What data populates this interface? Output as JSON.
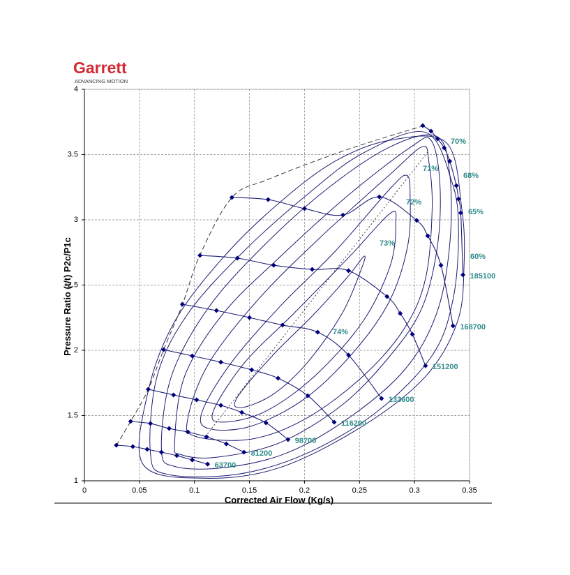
{
  "header": {
    "logo": "Garrett",
    "tagline": "ADVANCING MOTION"
  },
  "chart_data": {
    "type": "compressor_map",
    "x_label": "Corrected Air Flow (Kg/s)",
    "y_label": "Pressure Ratio (t/t) P2c/P1c",
    "xlim": [
      0,
      0.35
    ],
    "ylim": [
      1,
      4
    ],
    "xticks": [
      0,
      0.05,
      0.1,
      0.15,
      0.2,
      0.25,
      0.3,
      0.35
    ],
    "yticks": [
      1,
      1.5,
      2,
      2.5,
      3,
      3.5,
      4
    ],
    "grid": true,
    "line_color": "#1c1c72",
    "marker_color": "#000080",
    "label_color": "#2e8b8b",
    "series": [
      {
        "name": "63700",
        "x": [
          0.029,
          0.044,
          0.057,
          0.07,
          0.084,
          0.098,
          0.112
        ],
        "y": [
          1.273,
          1.262,
          1.241,
          1.219,
          1.193,
          1.16,
          1.128
        ]
      },
      {
        "name": "81200",
        "x": [
          0.042,
          0.06,
          0.077,
          0.094,
          0.111,
          0.129,
          0.145
        ],
        "y": [
          1.455,
          1.439,
          1.401,
          1.374,
          1.337,
          1.283,
          1.219
        ]
      },
      {
        "name": "98700",
        "x": [
          0.058,
          0.081,
          0.102,
          0.124,
          0.143,
          0.165,
          0.185
        ],
        "y": [
          1.701,
          1.658,
          1.62,
          1.578,
          1.524,
          1.444,
          1.316
        ]
      },
      {
        "name": "116200",
        "x": [
          0.072,
          0.098,
          0.124,
          0.152,
          0.176,
          0.203,
          0.227
        ],
        "y": [
          2.005,
          1.957,
          1.909,
          1.85,
          1.786,
          1.652,
          1.449
        ]
      },
      {
        "name": "133600",
        "x": [
          0.089,
          0.12,
          0.15,
          0.18,
          0.212,
          0.24,
          0.27
        ],
        "y": [
          2.353,
          2.305,
          2.251,
          2.193,
          2.139,
          1.963,
          1.631
        ]
      },
      {
        "name": "151200",
        "x": [
          0.105,
          0.139,
          0.172,
          0.207,
          0.24,
          0.275,
          0.287,
          0.298,
          0.31
        ],
        "y": [
          2.727,
          2.706,
          2.652,
          2.62,
          2.61,
          2.412,
          2.283,
          2.123,
          1.882
        ]
      },
      {
        "name": "168700",
        "x": [
          0.134,
          0.167,
          0.2,
          0.235,
          0.268,
          0.302,
          0.312,
          0.324,
          0.335
        ],
        "y": [
          3.171,
          3.155,
          3.086,
          3.037,
          3.176,
          2.995,
          2.877,
          2.652,
          2.187
        ]
      },
      {
        "name": "185100",
        "x": [
          0.3075,
          0.315,
          0.321,
          0.327,
          0.332,
          0.338,
          0.34,
          0.342,
          0.344
        ],
        "y": [
          3.722,
          3.679,
          3.62,
          3.551,
          3.449,
          3.262,
          3.16,
          3.053,
          2.578
        ]
      }
    ],
    "efficiency_contours": [
      {
        "name": "60%",
        "x": [
          0.053,
          0.058,
          0.082,
          0.126,
          0.177,
          0.228,
          0.278,
          0.329,
          0.343,
          0.345,
          0.339,
          0.31,
          0.253,
          0.177,
          0.107
        ],
        "y": [
          1.13,
          1.69,
          2.22,
          2.71,
          3.13,
          3.45,
          3.61,
          3.59,
          3.08,
          2.65,
          2.22,
          1.8,
          1.42,
          1.1,
          1.02
        ]
      },
      {
        "name": "65%",
        "x": [
          0.06,
          0.066,
          0.094,
          0.145,
          0.202,
          0.253,
          0.31,
          0.334,
          0.34,
          0.335,
          0.316,
          0.266,
          0.202,
          0.139,
          0.075
        ],
        "y": [
          1.21,
          1.8,
          2.28,
          2.76,
          3.19,
          3.51,
          3.67,
          3.29,
          2.92,
          2.39,
          1.96,
          1.53,
          1.21,
          1.05,
          1.05
        ]
      },
      {
        "name": "68%",
        "x": [
          0.07,
          0.079,
          0.113,
          0.164,
          0.221,
          0.278,
          0.32,
          0.332,
          0.332,
          0.32,
          0.291,
          0.24,
          0.183,
          0.126,
          0.082
        ],
        "y": [
          1.24,
          1.8,
          2.33,
          2.81,
          3.24,
          3.56,
          3.64,
          3.35,
          2.81,
          2.28,
          1.85,
          1.48,
          1.21,
          1.1,
          1.11
        ]
      },
      {
        "name": "70%",
        "x": [
          0.082,
          0.091,
          0.126,
          0.177,
          0.24,
          0.297,
          0.315,
          0.323,
          0.321,
          0.307,
          0.278,
          0.234,
          0.177,
          0.12,
          0.088
        ],
        "y": [
          1.29,
          1.8,
          2.28,
          2.71,
          3.19,
          3.56,
          3.61,
          3.29,
          2.81,
          2.33,
          1.96,
          1.58,
          1.29,
          1.18,
          1.2
        ]
      },
      {
        "name": "71%",
        "x": [
          0.094,
          0.113,
          0.158,
          0.215,
          0.278,
          0.307,
          0.313,
          0.316,
          0.31,
          0.291,
          0.253,
          0.202,
          0.152,
          0.101
        ],
        "y": [
          1.48,
          1.9,
          2.39,
          2.87,
          3.35,
          3.56,
          3.45,
          3.08,
          2.55,
          2.17,
          1.8,
          1.48,
          1.32,
          1.34
        ]
      },
      {
        "name": "72%",
        "x": [
          0.107,
          0.133,
          0.177,
          0.228,
          0.278,
          0.293,
          0.296,
          0.294,
          0.278,
          0.247,
          0.202,
          0.152,
          0.113
        ],
        "y": [
          1.53,
          1.9,
          2.33,
          2.76,
          3.24,
          3.34,
          3.19,
          2.81,
          2.39,
          2.01,
          1.64,
          1.42,
          1.4
        ]
      },
      {
        "name": "73%",
        "x": [
          0.117,
          0.145,
          0.19,
          0.24,
          0.278,
          0.283,
          0.278,
          0.253,
          0.209,
          0.164,
          0.126
        ],
        "y": [
          1.53,
          1.9,
          2.28,
          2.71,
          3.05,
          2.97,
          2.65,
          2.22,
          1.8,
          1.53,
          1.45
        ]
      },
      {
        "name": "74%",
        "x": [
          0.139,
          0.171,
          0.209,
          0.24,
          0.254,
          0.252,
          0.234,
          0.202,
          0.171,
          0.142
        ],
        "y": [
          1.64,
          1.96,
          2.28,
          2.57,
          2.72,
          2.63,
          2.28,
          1.9,
          1.66,
          1.56
        ]
      }
    ],
    "surge_line": {
      "x": [
        0.029,
        0.042,
        0.058,
        0.072,
        0.089,
        0.105,
        0.134,
        0.167,
        0.236,
        0.3075
      ],
      "y": [
        1.27,
        1.455,
        1.7,
        2.005,
        2.35,
        2.73,
        3.17,
        3.31,
        3.53,
        3.72
      ]
    },
    "peak_efficiency_line": {
      "x": [
        0.11,
        0.313
      ],
      "y": [
        1.34,
        3.53
      ]
    }
  }
}
